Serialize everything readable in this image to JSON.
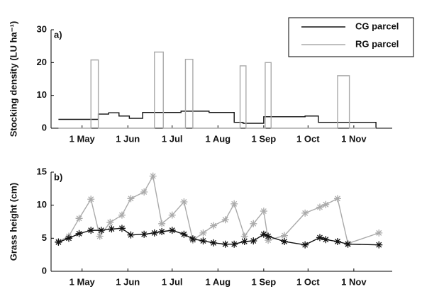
{
  "chart_data": [
    {
      "type": "line",
      "panel_label": "a)",
      "y_label": "Stocking density (LU ha⁻¹)",
      "step": true,
      "legend": "upper right",
      "markers": false,
      "xlim": [
        100,
        331
      ],
      "xticks": [
        {
          "value": 121,
          "label": "1 May"
        },
        {
          "value": 152,
          "label": "1 Jun"
        },
        {
          "value": 182,
          "label": "1 Jul"
        },
        {
          "value": 213,
          "label": "1 Aug"
        },
        {
          "value": 244,
          "label": "1 Sep"
        },
        {
          "value": 274,
          "label": "1 Oct"
        },
        {
          "value": 305,
          "label": "1 Nov"
        }
      ],
      "ylim": [
        0,
        30
      ],
      "yticks": [
        0,
        10,
        20,
        30
      ],
      "series": [
        {
          "name": "CG parcel",
          "color": "#111111",
          "x": [
            105,
            132,
            132,
            139,
            139,
            146,
            146,
            153,
            153,
            162,
            162,
            188,
            188,
            207,
            207,
            224,
            224,
            230,
            230,
            244,
            244,
            272,
            272,
            281,
            281,
            320,
            320
          ],
          "values": [
            2.7,
            2.7,
            4.3,
            4.3,
            4.7,
            4.7,
            3.7,
            3.7,
            3.0,
            3.0,
            4.8,
            4.8,
            5.2,
            5.2,
            4.8,
            4.8,
            1.8,
            1.8,
            1.5,
            1.5,
            3.5,
            3.5,
            3.7,
            3.7,
            1.8,
            1.8,
            0
          ]
        },
        {
          "name": "RG parcel",
          "color": "#aaaaaa",
          "x": [
            105,
            127,
            127,
            132,
            132,
            170,
            170,
            176,
            176,
            191,
            191,
            196,
            196,
            228,
            228,
            232,
            232,
            245,
            245,
            249,
            249,
            294,
            294,
            302,
            302,
            320
          ],
          "values": [
            0,
            0,
            20.8,
            20.8,
            0,
            0,
            23.2,
            23.2,
            0,
            0,
            21,
            21,
            0,
            0,
            19,
            19,
            0,
            0,
            20,
            20,
            0,
            0,
            16,
            16,
            0,
            0
          ]
        }
      ]
    },
    {
      "type": "line",
      "panel_label": "b)",
      "y_label": "Grass height (cm)",
      "step": false,
      "markers": true,
      "xlim": [
        100,
        331
      ],
      "xticks": [
        {
          "value": 121,
          "label": "1 May"
        },
        {
          "value": 152,
          "label": "1 Jun"
        },
        {
          "value": 182,
          "label": "1 Jul"
        },
        {
          "value": 213,
          "label": "1 Aug"
        },
        {
          "value": 244,
          "label": "1 Sep"
        },
        {
          "value": 274,
          "label": "1 Oct"
        },
        {
          "value": 305,
          "label": "1 Nov"
        }
      ],
      "ylim": [
        0,
        15
      ],
      "yticks": [
        0,
        5,
        10,
        15
      ],
      "series": [
        {
          "name": "RG parcel",
          "color": "#aaaaaa",
          "x": [
            105,
            112,
            119,
            127,
            133,
            140,
            148,
            154,
            163,
            169,
            175,
            182,
            190,
            196,
            203,
            210,
            218,
            224,
            231,
            237,
            244,
            247,
            258,
            272,
            282,
            286,
            294,
            301,
            322
          ],
          "values": [
            4.5,
            5.3,
            8.0,
            10.9,
            5.3,
            7.4,
            8.5,
            11.0,
            12.0,
            14.4,
            7.2,
            8.5,
            10.5,
            4.7,
            5.8,
            6.9,
            7.8,
            10.2,
            5.3,
            7.2,
            9.1,
            4.7,
            5.4,
            8.8,
            9.7,
            10.1,
            11.0,
            4.2,
            5.8
          ]
        },
        {
          "name": "CG parcel",
          "color": "#111111",
          "x": [
            105,
            112,
            119,
            127,
            134,
            141,
            148,
            154,
            163,
            170,
            175,
            182,
            190,
            196,
            203,
            210,
            218,
            224,
            231,
            237,
            244,
            247,
            258,
            272,
            282,
            286,
            294,
            301,
            322
          ],
          "values": [
            4.4,
            5.0,
            5.7,
            6.2,
            6.2,
            6.4,
            6.5,
            5.5,
            5.6,
            5.8,
            6.0,
            6.2,
            5.6,
            4.9,
            4.6,
            4.3,
            4.1,
            4.1,
            4.5,
            4.6,
            5.6,
            5.3,
            4.5,
            4.0,
            5.1,
            4.8,
            4.5,
            4.1,
            4.0
          ]
        }
      ]
    }
  ]
}
